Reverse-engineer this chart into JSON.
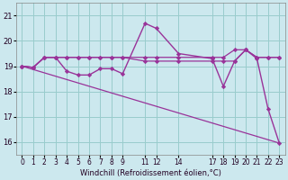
{
  "background_color": "#cce8ee",
  "grid_color": "#99cccc",
  "line_color": "#993399",
  "xlim": [
    -0.5,
    23.5
  ],
  "ylim": [
    15.5,
    21.5
  ],
  "yticks": [
    16,
    17,
    18,
    19,
    20,
    21
  ],
  "xticks": [
    0,
    1,
    2,
    3,
    4,
    5,
    6,
    7,
    8,
    9,
    11,
    12,
    14,
    17,
    18,
    19,
    20,
    21,
    22,
    23
  ],
  "xlabel": "Windchill (Refroidissement éolien,°C)",
  "figsize": [
    3.2,
    2.0
  ],
  "dpi": 100,
  "series": [
    {
      "x": [
        0,
        1,
        2,
        3,
        4,
        5,
        6,
        7,
        8,
        9,
        11,
        12,
        14,
        17,
        18,
        19,
        20,
        21,
        22,
        23
      ],
      "y": [
        19.0,
        18.95,
        19.35,
        19.35,
        19.35,
        19.35,
        19.35,
        19.35,
        19.35,
        19.35,
        19.35,
        19.35,
        19.35,
        19.35,
        19.35,
        19.65,
        19.65,
        19.35,
        19.35,
        19.35
      ],
      "marker": true,
      "lw": 0.9
    },
    {
      "x": [
        0,
        1,
        2,
        3,
        4,
        5,
        6,
        7,
        8,
        9,
        11,
        12,
        14,
        17,
        18,
        19,
        20,
        21,
        22,
        23
      ],
      "y": [
        19.0,
        18.95,
        19.35,
        19.35,
        19.35,
        19.35,
        19.35,
        19.35,
        19.35,
        19.35,
        19.2,
        19.2,
        19.2,
        19.2,
        19.2,
        19.2,
        19.65,
        19.35,
        19.35,
        19.35
      ],
      "marker": true,
      "lw": 0.9
    },
    {
      "x": [
        0,
        23
      ],
      "y": [
        19.0,
        15.95
      ],
      "marker": false,
      "lw": 0.9
    },
    {
      "x": [
        0,
        1,
        2,
        3,
        4,
        5,
        6,
        7,
        8,
        9,
        11,
        12,
        14,
        17,
        18,
        19,
        20,
        21,
        22,
        23
      ],
      "y": [
        19.0,
        18.95,
        19.35,
        19.35,
        18.8,
        18.65,
        18.65,
        18.9,
        18.9,
        18.7,
        20.7,
        20.5,
        19.5,
        19.3,
        18.2,
        19.2,
        19.65,
        19.3,
        17.3,
        15.95
      ],
      "marker": true,
      "lw": 1.0
    }
  ]
}
